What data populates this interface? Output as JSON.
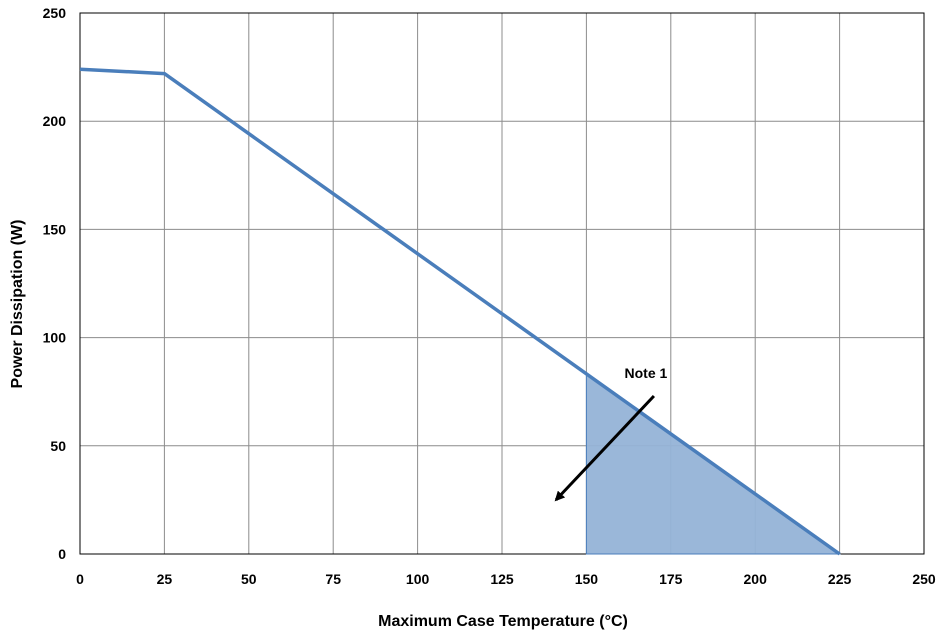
{
  "chart_data": {
    "type": "line",
    "title": "",
    "xlabel": "Maximum Case Temperature (°C)",
    "ylabel": "Power Dissipation (W)",
    "xlim": [
      0,
      250
    ],
    "ylim": [
      0,
      250
    ],
    "xticks": [
      0,
      25,
      50,
      75,
      100,
      125,
      150,
      175,
      200,
      225,
      250
    ],
    "yticks": [
      0,
      50,
      100,
      150,
      200,
      250
    ],
    "grid": true,
    "series": [
      {
        "x": [
          0,
          25,
          225
        ],
        "y": [
          224,
          222,
          0
        ],
        "color": "#4a7ebb"
      }
    ],
    "shaded_region": {
      "x": [
        150,
        150,
        225
      ],
      "y": [
        0,
        83,
        0
      ],
      "color": "#95b3d7"
    },
    "annotation": {
      "text": "Note 1",
      "arrow_from": [
        170,
        73
      ],
      "arrow_to": [
        141,
        25
      ]
    }
  }
}
